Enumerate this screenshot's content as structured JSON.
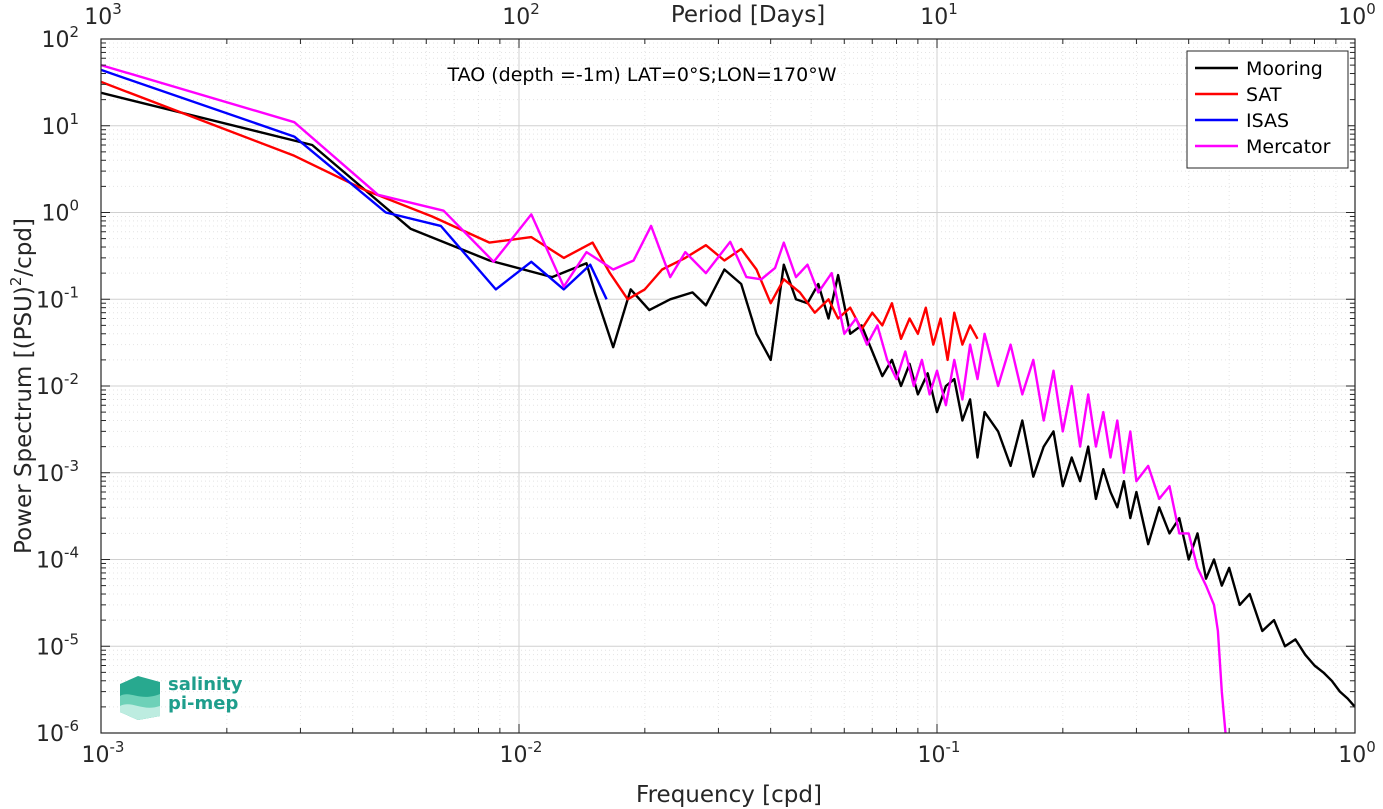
{
  "chart_data": {
    "type": "line",
    "title": "TAO (depth =-1m) LAT=0°S;LON=170°W",
    "xlabel": "Frequency [cpd]",
    "ylabel_parts": [
      "Power Spectrum [(PSU)",
      "2",
      "/cpd]"
    ],
    "top_xlabel": "Period [Days]",
    "x_scale": "log",
    "y_scale": "log",
    "xlim": [
      0.001,
      1
    ],
    "ylim": [
      1e-06,
      100
    ],
    "grid": true,
    "legend_position": "top-right",
    "x_ticks": [
      {
        "base": "10",
        "exp": "-3",
        "value": 0.001
      },
      {
        "base": "10",
        "exp": "-2",
        "value": 0.01
      },
      {
        "base": "10",
        "exp": "-1",
        "value": 0.1
      },
      {
        "base": "10",
        "exp": "0",
        "value": 1
      }
    ],
    "y_ticks": [
      {
        "base": "10",
        "exp": "2",
        "value": 100
      },
      {
        "base": "10",
        "exp": "1",
        "value": 10
      },
      {
        "base": "10",
        "exp": "0",
        "value": 1
      },
      {
        "base": "10",
        "exp": "-1",
        "value": 0.1
      },
      {
        "base": "10",
        "exp": "-2",
        "value": 0.01
      },
      {
        "base": "10",
        "exp": "-3",
        "value": 0.001
      },
      {
        "base": "10",
        "exp": "-4",
        "value": 0.0001
      },
      {
        "base": "10",
        "exp": "-5",
        "value": 1e-05
      },
      {
        "base": "10",
        "exp": "-6",
        "value": 1e-06
      }
    ],
    "top_ticks": [
      {
        "base": "10",
        "exp": "3",
        "value": 0.001
      },
      {
        "base": "10",
        "exp": "2",
        "value": 0.01
      },
      {
        "base": "10",
        "exp": "1",
        "value": 0.1
      },
      {
        "base": "10",
        "exp": "0",
        "value": 1
      }
    ],
    "series": [
      {
        "name": "Mooring",
        "color": "#000000",
        "x": [
          0.001,
          0.0032,
          0.0055,
          0.0085,
          0.012,
          0.0145,
          0.0152,
          0.0168,
          0.0185,
          0.0205,
          0.023,
          0.026,
          0.028,
          0.031,
          0.034,
          0.037,
          0.04,
          0.043,
          0.046,
          0.049,
          0.052,
          0.055,
          0.058,
          0.062,
          0.066,
          0.07,
          0.074,
          0.078,
          0.082,
          0.086,
          0.09,
          0.095,
          0.1,
          0.105,
          0.11,
          0.115,
          0.12,
          0.125,
          0.13,
          0.14,
          0.15,
          0.16,
          0.17,
          0.18,
          0.19,
          0.2,
          0.21,
          0.22,
          0.23,
          0.24,
          0.25,
          0.26,
          0.27,
          0.28,
          0.29,
          0.3,
          0.32,
          0.34,
          0.36,
          0.38,
          0.4,
          0.42,
          0.44,
          0.46,
          0.48,
          0.5,
          0.53,
          0.56,
          0.6,
          0.64,
          0.68,
          0.72,
          0.76,
          0.8,
          0.84,
          0.88,
          0.92,
          0.96,
          1.0
        ],
        "y": [
          24,
          6,
          0.65,
          0.28,
          0.18,
          0.26,
          0.12,
          0.028,
          0.13,
          0.075,
          0.1,
          0.12,
          0.085,
          0.22,
          0.15,
          0.04,
          0.02,
          0.25,
          0.1,
          0.09,
          0.15,
          0.06,
          0.19,
          0.04,
          0.05,
          0.025,
          0.013,
          0.02,
          0.01,
          0.018,
          0.008,
          0.014,
          0.005,
          0.01,
          0.012,
          0.004,
          0.007,
          0.0015,
          0.005,
          0.003,
          0.0012,
          0.004,
          0.0009,
          0.002,
          0.003,
          0.0007,
          0.0015,
          0.0008,
          0.002,
          0.0005,
          0.0011,
          0.0006,
          0.0004,
          0.0008,
          0.0003,
          0.0006,
          0.00015,
          0.0004,
          0.0002,
          0.0003,
          0.0001,
          0.0002,
          6e-05,
          0.0001,
          5e-05,
          8e-05,
          3e-05,
          4e-05,
          1.5e-05,
          2e-05,
          1e-05,
          1.2e-05,
          8e-06,
          6e-06,
          5e-06,
          4e-06,
          3e-06,
          2.5e-06,
          2e-06
        ]
      },
      {
        "name": "SAT",
        "color": "#ff0000",
        "x": [
          0.001,
          0.0029,
          0.0043,
          0.0062,
          0.0085,
          0.0107,
          0.0128,
          0.015,
          0.0165,
          0.0182,
          0.02,
          0.022,
          0.025,
          0.028,
          0.031,
          0.034,
          0.037,
          0.04,
          0.043,
          0.047,
          0.051,
          0.055,
          0.058,
          0.062,
          0.066,
          0.07,
          0.074,
          0.078,
          0.082,
          0.086,
          0.09,
          0.094,
          0.098,
          0.102,
          0.106,
          0.11,
          0.115,
          0.12,
          0.125
        ],
        "y": [
          32,
          4.5,
          1.8,
          0.9,
          0.45,
          0.52,
          0.3,
          0.45,
          0.2,
          0.1,
          0.13,
          0.22,
          0.3,
          0.42,
          0.28,
          0.38,
          0.22,
          0.09,
          0.17,
          0.12,
          0.07,
          0.1,
          0.06,
          0.08,
          0.045,
          0.07,
          0.05,
          0.09,
          0.035,
          0.06,
          0.04,
          0.08,
          0.03,
          0.06,
          0.02,
          0.07,
          0.03,
          0.05,
          0.035
        ]
      },
      {
        "name": "ISAS",
        "color": "#0000ff",
        "x": [
          0.001,
          0.0029,
          0.0048,
          0.0065,
          0.0088,
          0.0107,
          0.0128,
          0.0148,
          0.0162
        ],
        "y": [
          44,
          7.5,
          1,
          0.7,
          0.13,
          0.27,
          0.13,
          0.25,
          0.1
        ]
      },
      {
        "name": "Mercator",
        "color": "#ff00ff",
        "x": [
          0.001,
          0.0029,
          0.0046,
          0.0066,
          0.0087,
          0.0107,
          0.0128,
          0.0145,
          0.0168,
          0.0188,
          0.0207,
          0.023,
          0.025,
          0.028,
          0.032,
          0.035,
          0.038,
          0.041,
          0.043,
          0.046,
          0.049,
          0.052,
          0.056,
          0.06,
          0.064,
          0.068,
          0.072,
          0.076,
          0.08,
          0.084,
          0.088,
          0.092,
          0.096,
          0.1,
          0.105,
          0.11,
          0.115,
          0.12,
          0.125,
          0.13,
          0.14,
          0.15,
          0.16,
          0.17,
          0.18,
          0.19,
          0.2,
          0.21,
          0.22,
          0.23,
          0.24,
          0.25,
          0.26,
          0.27,
          0.28,
          0.29,
          0.3,
          0.32,
          0.34,
          0.36,
          0.38,
          0.4,
          0.42,
          0.44,
          0.46,
          0.47,
          0.48,
          0.49
        ],
        "y": [
          50,
          11,
          1.6,
          1.05,
          0.27,
          0.95,
          0.14,
          0.35,
          0.22,
          0.28,
          0.7,
          0.18,
          0.35,
          0.2,
          0.46,
          0.18,
          0.17,
          0.23,
          0.45,
          0.18,
          0.25,
          0.12,
          0.2,
          0.04,
          0.06,
          0.03,
          0.05,
          0.02,
          0.012,
          0.025,
          0.01,
          0.02,
          0.008,
          0.015,
          0.006,
          0.02,
          0.007,
          0.03,
          0.012,
          0.04,
          0.01,
          0.03,
          0.008,
          0.02,
          0.004,
          0.015,
          0.003,
          0.01,
          0.002,
          0.008,
          0.002,
          0.005,
          0.0015,
          0.004,
          0.001,
          0.003,
          0.0008,
          0.0012,
          0.0005,
          0.0007,
          0.0002,
          0.0002,
          8e-05,
          5e-05,
          3e-05,
          1.5e-05,
          3e-06,
          1e-06
        ]
      }
    ]
  },
  "logo": {
    "line1": "salinity",
    "line2": "pi-mep"
  }
}
